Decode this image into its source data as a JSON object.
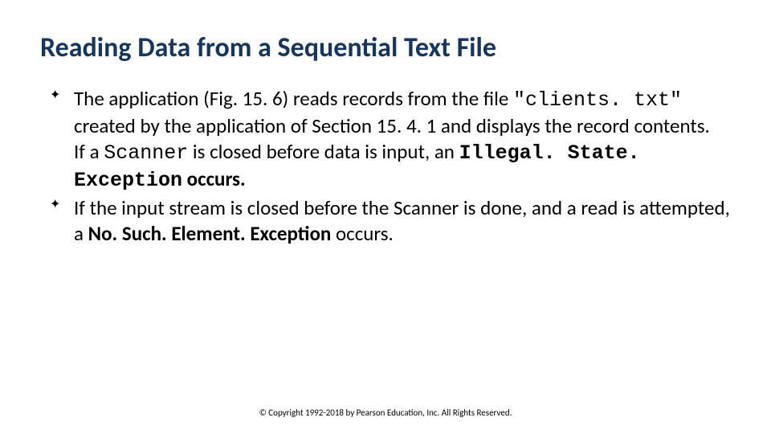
{
  "title": "Reading Data from a Sequential Text File",
  "bullets": [
    {
      "segments": [
        {
          "text": "The application (Fig. 15. 6) reads records from the file ",
          "class": ""
        },
        {
          "text": "\"clients. txt\"",
          "class": "mono"
        },
        {
          "text": " created by the application of Section 15. 4. 1 and displays the record contents.",
          "class": ""
        },
        {
          "br": true
        },
        {
          "text": "If a ",
          "class": ""
        },
        {
          "text": "Scanner",
          "class": "mono"
        },
        {
          "text": " is closed before data is input, an ",
          "class": ""
        },
        {
          "text": "Illegal. State. Exception",
          "class": "mono bold"
        },
        {
          "text": " occurs.",
          "class": "bold"
        }
      ]
    },
    {
      "segments": [
        {
          "text": "If the input stream is closed before the Scanner is done, and a read is attempted, a ",
          "class": ""
        },
        {
          "text": "No. Such. Element. Exception",
          "class": "bold"
        },
        {
          "text": " occurs.",
          "class": ""
        }
      ]
    }
  ],
  "footer": "© Copyright 1992-2018 by Pearson Education, Inc. All Rights Reserved.",
  "style": {
    "title_color": "#17365d",
    "title_fontsize": 34,
    "body_fontsize": 25,
    "footer_fontsize": 11,
    "background": "#ffffff",
    "font_family": "Calibri",
    "mono_font_family": "Courier New",
    "bullet_glyph": "✦"
  }
}
